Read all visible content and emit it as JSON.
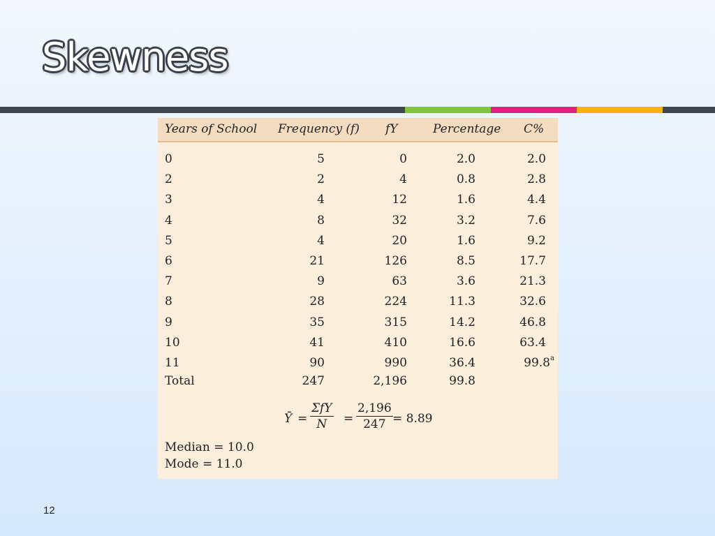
{
  "slide": {
    "title": "Skewness",
    "page_number": "12"
  },
  "table": {
    "headers": [
      "Years of School",
      "Frequency (f)",
      "fY",
      "Percentage",
      "C%"
    ],
    "rows": [
      [
        "0",
        "5",
        "0",
        "2.0",
        "2.0"
      ],
      [
        "2",
        "2",
        "4",
        "0.8",
        "2.8"
      ],
      [
        "3",
        "4",
        "12",
        "1.6",
        "4.4"
      ],
      [
        "4",
        "8",
        "32",
        "3.2",
        "7.6"
      ],
      [
        "5",
        "4",
        "20",
        "1.6",
        "9.2"
      ],
      [
        "6",
        "21",
        "126",
        "8.5",
        "17.7"
      ],
      [
        "7",
        "9",
        "63",
        "3.6",
        "21.3"
      ],
      [
        "8",
        "28",
        "224",
        "11.3",
        "32.6"
      ],
      [
        "9",
        "35",
        "315",
        "14.2",
        "46.8"
      ],
      [
        "10",
        "41",
        "410",
        "16.6",
        "63.4"
      ],
      [
        "11",
        "90",
        "990",
        "36.4",
        "99.8"
      ]
    ],
    "last_row_note": "a",
    "total": {
      "label": "Total",
      "frequency": "247",
      "fy": "2,196",
      "percentage": "99.8"
    },
    "formula": {
      "lhs": "Ȳ",
      "equals": "=",
      "numerator1": "ΣfY",
      "denominator1": "N",
      "numerator2": "2,196",
      "denominator2": "247",
      "result": "= 8.89"
    },
    "median": "Median = 10.0",
    "mode": "Mode = 11.0"
  }
}
